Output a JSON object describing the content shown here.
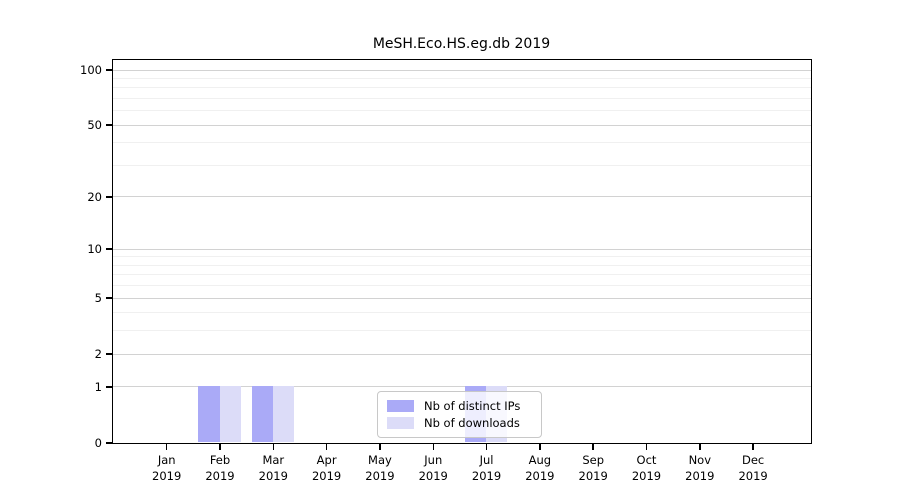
{
  "chart_data": {
    "type": "bar",
    "title": "MeSH.Eco.HS.eg.db 2019",
    "year": "2019",
    "categories": [
      "Jan",
      "Feb",
      "Mar",
      "Apr",
      "May",
      "Jun",
      "Jul",
      "Aug",
      "Sep",
      "Oct",
      "Nov",
      "Dec"
    ],
    "series": [
      {
        "name": "Nb of distinct IPs",
        "color": "#aaaaf7",
        "values": [
          0,
          1,
          1,
          0,
          0,
          0,
          1,
          0,
          0,
          0,
          0,
          0
        ]
      },
      {
        "name": "Nb of downloads",
        "color": "#dcdcf8",
        "values": [
          0,
          1,
          1,
          0,
          0,
          0,
          1,
          0,
          0,
          0,
          0,
          0
        ]
      }
    ],
    "xlabel": "",
    "ylabel": "",
    "yscale": "log1p",
    "ylim": [
      0,
      100
    ],
    "yticks": [
      0,
      1,
      2,
      5,
      10,
      20,
      50,
      100
    ],
    "yticks_minor": [
      3,
      4,
      6,
      7,
      8,
      9,
      30,
      40,
      60,
      70,
      80,
      90
    ],
    "grid": true,
    "legend_position": "inside lower center"
  },
  "colors": {
    "grid_major": "#d2d2d2",
    "grid_minor": "#f0f0f0",
    "axis": "#000000",
    "text": "#000000",
    "legend_border": "#c8c8c8",
    "legend_background": "rgba(255,255,255,0.8)"
  }
}
